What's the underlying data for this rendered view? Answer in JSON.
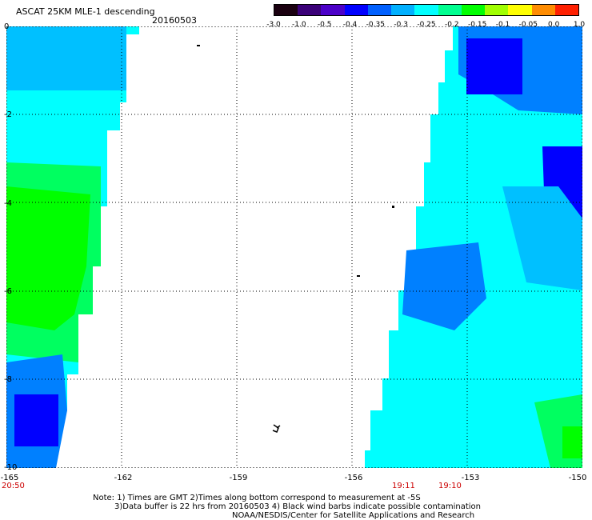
{
  "header": {
    "title": "ASCAT 25KM MLE-1 descending",
    "date": "20160503"
  },
  "colorbar": {
    "labels": [
      "-3.0",
      "-1.0",
      "-0.5",
      "-0.4",
      "-0.35",
      "-0.3",
      "-0.25",
      "-0.2",
      "-0.15",
      "-0.1",
      "-0.05",
      "0.0",
      "1.0"
    ],
    "colors": [
      "#1a0010",
      "#3a0078",
      "#4b00c8",
      "#0000ff",
      "#0060ff",
      "#00b0ff",
      "#00ffff",
      "#00ff90",
      "#00ff00",
      "#a0ff00",
      "#ffff00",
      "#ff8c00",
      "#ff2000"
    ]
  },
  "map": {
    "lon_ticks": [
      "-165",
      "-162",
      "-159",
      "-156",
      "-153",
      "-150"
    ],
    "lat_ticks": [
      "0",
      "-2",
      "-4",
      "-6",
      "-8",
      "-10"
    ],
    "lon_range": [
      -165,
      -150
    ],
    "lat_range": [
      -10,
      0
    ],
    "colors": {
      "cyan": "#00ffff",
      "aqua": "#00ffd0",
      "green": "#00ff60",
      "bright_green": "#00ff00",
      "blue": "#0000ff",
      "light_blue": "#0080ff",
      "sky": "#00c0ff"
    }
  },
  "times": [
    "20:50",
    "19:11",
    "19:10"
  ],
  "notes": [
    "Note: 1) Times are GMT 2)Times along bottom correspond to measurement at -5S",
    "3)Data buffer is 22 hrs from 20160503 4) Black wind barbs indicate possible contamination",
    "NOAA/NESDIS/Center for Satellite Applications and Research"
  ]
}
